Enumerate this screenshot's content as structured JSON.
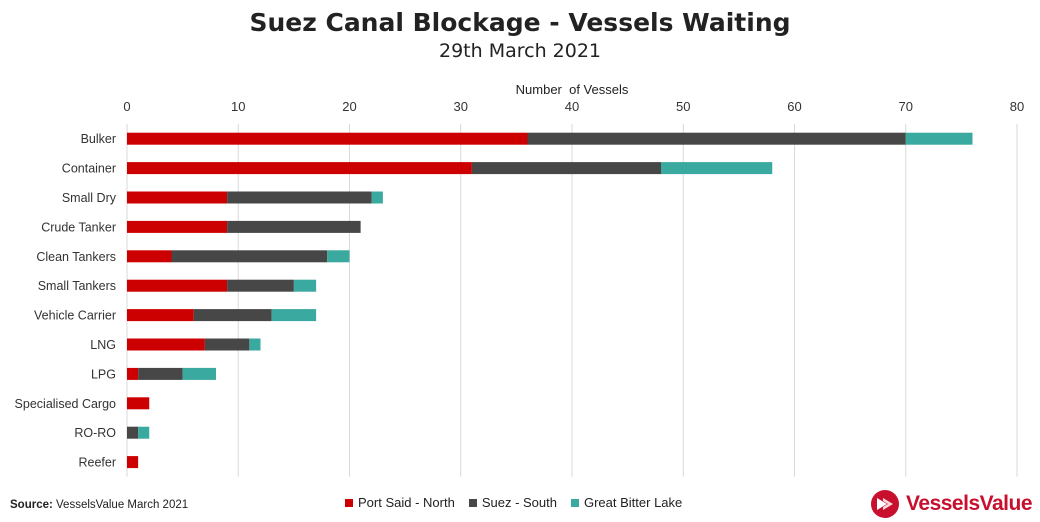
{
  "chart_data": {
    "type": "bar",
    "orientation": "horizontal",
    "stacked": true,
    "title": "Suez Canal Blockage - Vessels Waiting",
    "subtitle": "29th March 2021",
    "xlabel": "Number  of Vessels",
    "ylabel": "",
    "xlim": [
      0,
      80
    ],
    "xticks": [
      0,
      10,
      20,
      30,
      40,
      50,
      60,
      70,
      80
    ],
    "grid": true,
    "legend_position": "bottom",
    "categories": [
      "Bulker",
      "Container",
      "Small Dry",
      "Crude Tanker",
      "Clean Tankers",
      "Small Tankers",
      "Vehicle Carrier",
      "LNG",
      "LPG",
      "Specialised Cargo",
      "RO-RO",
      "Reefer"
    ],
    "series": [
      {
        "name": "Port Said - North",
        "color": "#cc0000",
        "values": [
          36,
          31,
          9,
          9,
          4,
          9,
          6,
          7,
          1,
          2,
          0,
          1
        ]
      },
      {
        "name": "Suez - South",
        "color": "#474747",
        "values": [
          34,
          17,
          13,
          12,
          14,
          6,
          7,
          4,
          4,
          0,
          1,
          0
        ]
      },
      {
        "name": "Great Bitter Lake",
        "color": "#3aa99f",
        "values": [
          6,
          10,
          1,
          0,
          2,
          2,
          4,
          1,
          3,
          0,
          1,
          0
        ]
      }
    ]
  },
  "footer": {
    "source_label": "Source:",
    "source_text": " VesselsValue March 2021",
    "logo_text": "VesselsValue",
    "logo_color": "#c8102e"
  }
}
